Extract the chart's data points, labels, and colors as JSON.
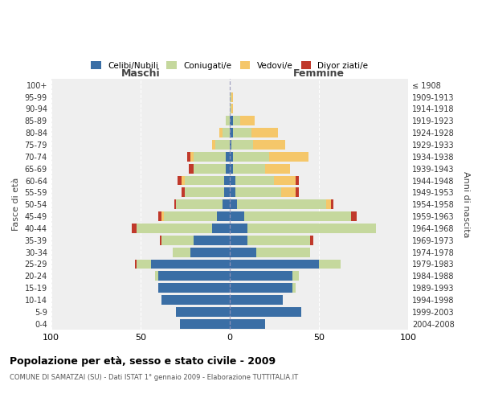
{
  "age_groups": [
    "0-4",
    "5-9",
    "10-14",
    "15-19",
    "20-24",
    "25-29",
    "30-34",
    "35-39",
    "40-44",
    "45-49",
    "50-54",
    "55-59",
    "60-64",
    "65-69",
    "70-74",
    "75-79",
    "80-84",
    "85-89",
    "90-94",
    "95-99",
    "100+"
  ],
  "birth_years": [
    "2004-2008",
    "1999-2003",
    "1994-1998",
    "1989-1993",
    "1984-1988",
    "1979-1983",
    "1974-1978",
    "1969-1973",
    "1964-1968",
    "1959-1963",
    "1954-1958",
    "1949-1953",
    "1944-1948",
    "1939-1943",
    "1934-1938",
    "1929-1933",
    "1924-1928",
    "1919-1923",
    "1914-1918",
    "1909-1913",
    "≤ 1908"
  ],
  "colors": {
    "celibi": "#3a6ea5",
    "coniugati": "#c5d89d",
    "vedovi": "#f5c76a",
    "divorziati": "#c0392b"
  },
  "male_celibi": [
    28,
    30,
    38,
    40,
    40,
    44,
    22,
    20,
    10,
    7,
    4,
    3,
    3,
    2,
    2,
    0,
    0,
    0,
    0,
    0,
    0
  ],
  "male_coniugati": [
    0,
    0,
    0,
    0,
    2,
    8,
    10,
    18,
    42,
    30,
    26,
    22,
    22,
    18,
    18,
    8,
    4,
    2,
    0,
    0,
    0
  ],
  "male_vedovi": [
    0,
    0,
    0,
    0,
    0,
    0,
    0,
    0,
    0,
    1,
    0,
    0,
    2,
    0,
    2,
    2,
    2,
    0,
    0,
    0,
    0
  ],
  "male_divorziati": [
    0,
    0,
    0,
    0,
    0,
    1,
    0,
    1,
    3,
    2,
    1,
    2,
    2,
    3,
    2,
    0,
    0,
    0,
    0,
    0,
    0
  ],
  "female_celibi": [
    20,
    40,
    30,
    35,
    35,
    50,
    15,
    10,
    10,
    8,
    4,
    3,
    3,
    2,
    2,
    1,
    2,
    2,
    0,
    0,
    0
  ],
  "female_coniugati": [
    0,
    0,
    0,
    2,
    4,
    12,
    30,
    35,
    72,
    60,
    50,
    26,
    22,
    18,
    20,
    12,
    10,
    4,
    1,
    1,
    0
  ],
  "female_vedovi": [
    0,
    0,
    0,
    0,
    0,
    0,
    0,
    0,
    0,
    0,
    3,
    8,
    12,
    14,
    22,
    18,
    15,
    8,
    1,
    1,
    0
  ],
  "female_divorziati": [
    0,
    0,
    0,
    0,
    0,
    0,
    0,
    2,
    0,
    3,
    1,
    2,
    2,
    0,
    0,
    0,
    0,
    0,
    0,
    0,
    0
  ],
  "title": "Popolazione per età, sesso e stato civile - 2009",
  "subtitle": "COMUNE DI SAMATZAI (SU) - Dati ISTAT 1° gennaio 2009 - Elaborazione TUTTITALIA.IT",
  "label_maschi": "Maschi",
  "label_femmine": "Femmine",
  "ylabel_left": "Fasce di età",
  "ylabel_right": "Anni di nascita",
  "legend_labels": [
    "Celibi/Nubili",
    "Coniugati/e",
    "Vedovi/e",
    "Divor ziati/e"
  ],
  "xlim": 100,
  "bg_color": "#efefef"
}
